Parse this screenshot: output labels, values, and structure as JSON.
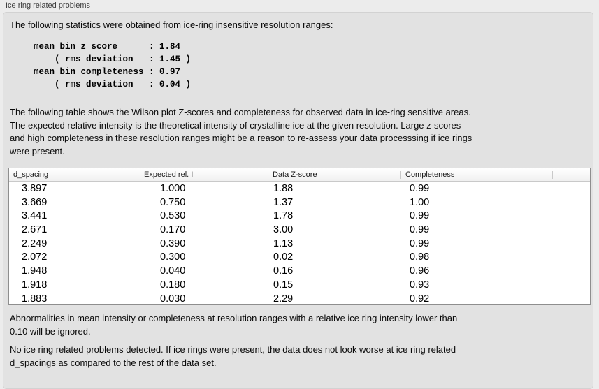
{
  "group": {
    "title": "Ice ring related problems"
  },
  "intro": "The following statistics were obtained from ice-ring insensitive resolution ranges:",
  "stats": {
    "mean_bin_z_score": "1.84",
    "rms_deviation_z_score": "1.45",
    "mean_bin_completeness": "0.97",
    "rms_deviation_completeness": "0.04"
  },
  "stats_block": "mean bin z_score      : 1.84\n    ( rms deviation   : 1.45 )\nmean bin completeness : 0.97\n    ( rms deviation   : 0.04 )",
  "table_intro": "The following table shows the Wilson plot Z-scores and completeness for observed data in ice-ring sensitive areas.\nThe expected relative intensity is the theoretical intensity of crystalline ice at the given resolution. Large z-scores\nand high completeness in these resolution ranges might be a reason to re-assess your data processsing if ice rings\nwere present.",
  "table": {
    "columns": [
      "d_spacing",
      "Expected rel. I",
      "Data Z-score",
      "Completeness"
    ],
    "rows": [
      [
        "3.897",
        "1.000",
        "1.88",
        "0.99"
      ],
      [
        "3.669",
        "0.750",
        "1.37",
        "1.00"
      ],
      [
        "3.441",
        "0.530",
        "1.78",
        "0.99"
      ],
      [
        "2.671",
        "0.170",
        "3.00",
        "0.99"
      ],
      [
        "2.249",
        "0.390",
        "1.13",
        "0.99"
      ],
      [
        "2.072",
        "0.300",
        "0.02",
        "0.98"
      ],
      [
        "1.948",
        "0.040",
        "0.16",
        "0.96"
      ],
      [
        "1.918",
        "0.180",
        "0.15",
        "0.93"
      ],
      [
        "1.883",
        "0.030",
        "2.29",
        "0.92"
      ]
    ]
  },
  "note_ignore": "Abnormalities in mean intensity or completeness at resolution ranges with a relative ice ring intensity lower than\n0.10 will be ignored.",
  "conclusion": "No ice ring related problems detected. If ice rings were present, the data does not look worse at ice ring related\nd_spacings as compared to the rest of the data set.",
  "colors": {
    "window_background": "#ececec",
    "panel_background": "#e2e2e2",
    "table_background": "#ffffff",
    "table_border": "#8e8e8e",
    "text": "#000000"
  }
}
